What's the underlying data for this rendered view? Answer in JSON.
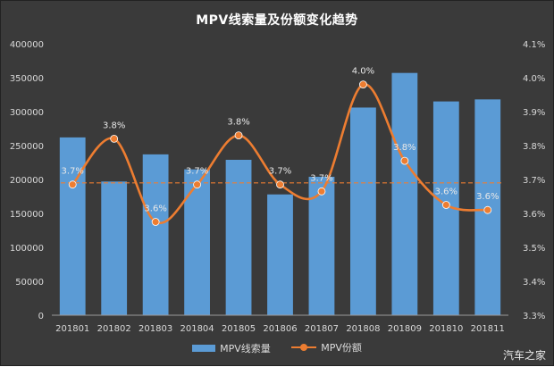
{
  "chart_data": {
    "type": "bar",
    "title": "MPV线索量及份额变化趋势",
    "categories": [
      "201801",
      "201802",
      "201803",
      "201804",
      "201805",
      "201806",
      "201807",
      "201808",
      "201809",
      "201810",
      "201811"
    ],
    "series": [
      {
        "name": "MPV线索量",
        "type": "bar",
        "axis": "left",
        "color": "#5b9bd5",
        "values": [
          262000,
          197000,
          237000,
          215000,
          229000,
          178000,
          204000,
          306000,
          357000,
          315000,
          318000
        ]
      },
      {
        "name": "MPV份额",
        "type": "line",
        "axis": "right",
        "color": "#ed7d31",
        "values": [
          3.685,
          3.82,
          3.575,
          3.685,
          3.83,
          3.685,
          3.665,
          3.98,
          3.755,
          3.625,
          3.61
        ],
        "labels": [
          "3.7%",
          "3.8%",
          "3.6%",
          "3.7%",
          "3.8%",
          "3.7%",
          "3.7%",
          "4.0%",
          "3.8%",
          "3.6%",
          "3.6%"
        ]
      }
    ],
    "reference_line": {
      "axis": "right",
      "value": 3.69,
      "style": "dashed",
      "color": "#ed7d31"
    },
    "y_left": {
      "ylim": [
        0,
        400000
      ],
      "ticks": [
        "0",
        "50000",
        "100000",
        "150000",
        "200000",
        "250000",
        "300000",
        "350000",
        "400000"
      ]
    },
    "y_right": {
      "ylim": [
        3.3,
        4.1
      ],
      "ticks": [
        "3.3%",
        "3.4%",
        "3.5%",
        "3.6%",
        "3.7%",
        "3.8%",
        "3.9%",
        "4.0%",
        "4.1%"
      ]
    },
    "grid": false,
    "legend": "bottom"
  },
  "watermark": "汽车之家"
}
